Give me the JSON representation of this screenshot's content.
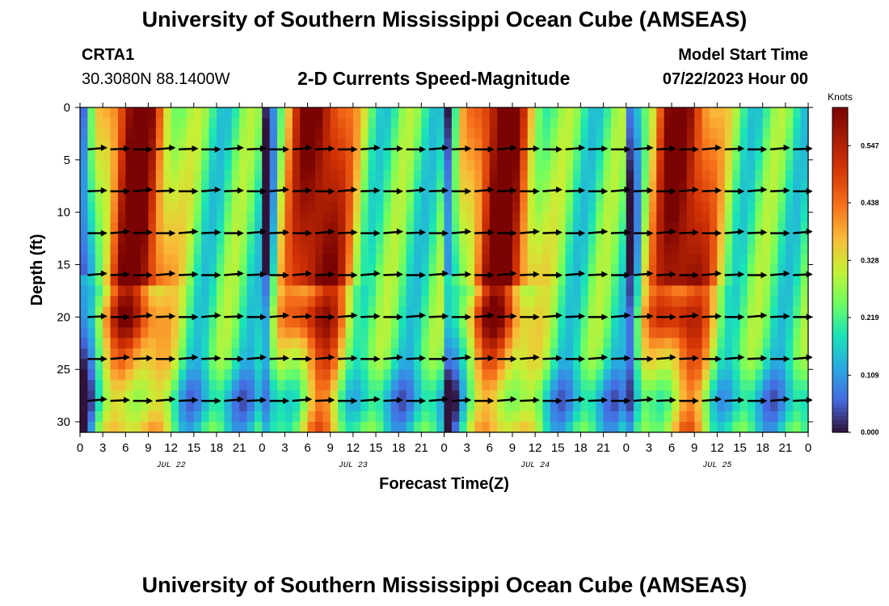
{
  "header": {
    "title": "University of Southern Mississippi Ocean Cube (AMSEAS)",
    "station_id": "CRTA1",
    "station_location": "30.3080N  88.1400W",
    "chart_subtitle": "2-D Currents Speed-Magnitude",
    "model_start_label": "Model Start Time",
    "model_start_value": "07/22/2023 Hour 00"
  },
  "footer": {
    "title": "University of Southern Mississippi Ocean Cube (AMSEAS)"
  },
  "chart_data": {
    "type": "heatmap",
    "title": "2-D Currents Speed-Magnitude",
    "xlabel": "Forecast Time(Z)",
    "ylabel": "Depth (ft)",
    "x_ticks": [
      "0",
      "3",
      "6",
      "9",
      "12",
      "15",
      "18",
      "21",
      "0",
      "3",
      "6",
      "9",
      "12",
      "15",
      "18",
      "21",
      "0",
      "3",
      "6",
      "9",
      "12",
      "15",
      "18",
      "21",
      "0",
      "3",
      "6",
      "9",
      "12",
      "15",
      "18",
      "21",
      "0"
    ],
    "date_labels": [
      "JUL 22",
      "JUL 23",
      "JUL 24",
      "JUL 25"
    ],
    "x_range_hours": [
      0,
      96
    ],
    "y_ticks": [
      "0",
      "5",
      "10",
      "15",
      "20",
      "25",
      "30"
    ],
    "ylim_ft": [
      0,
      31
    ],
    "colorbar": {
      "unit": "Knots",
      "ticks": [
        "0.547",
        "0.438",
        "0.328",
        "0.219",
        "0.109",
        "0.000"
      ],
      "range": [
        0.0,
        0.62
      ]
    },
    "arrow_depths_ft": [
      4,
      8,
      12,
      16,
      20,
      24,
      28
    ]
  },
  "colors": {
    "arrow": "#000000",
    "background": "#ffffff"
  }
}
